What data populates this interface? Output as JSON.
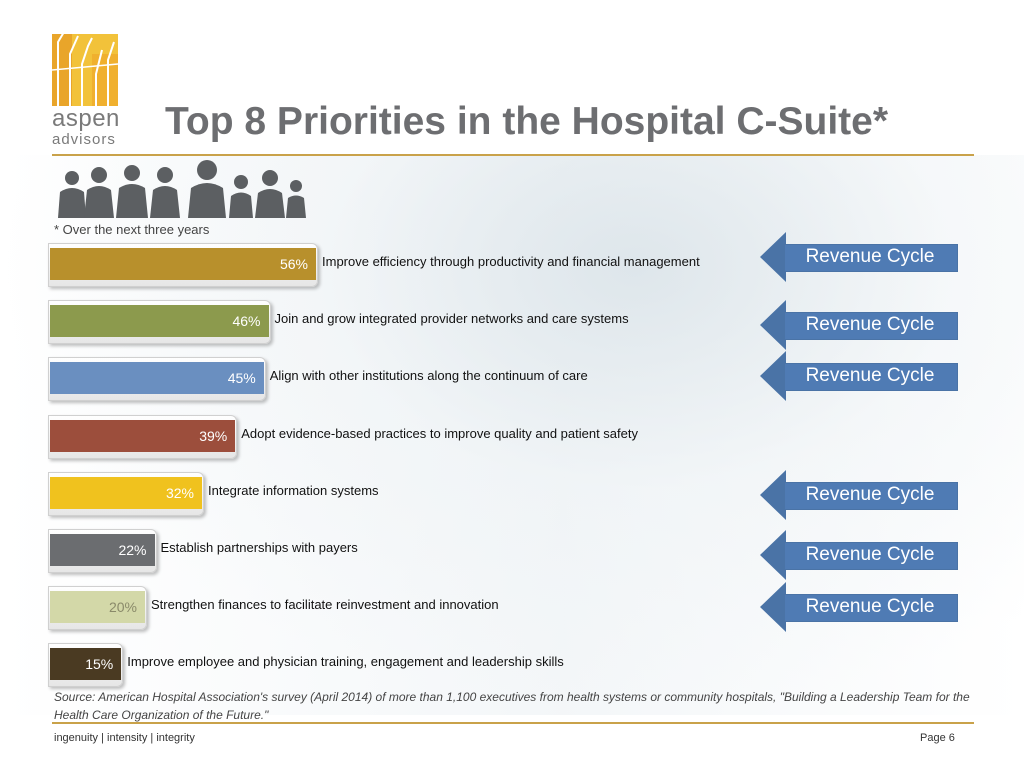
{
  "header": {
    "logo_line1": "aspen",
    "logo_line2": "advisors",
    "title": "Top 8 Priorities in the Hospital C-Suite*"
  },
  "footnote": "* Over the next three years",
  "colors": {
    "accent_gold": "#c9a24a",
    "arrow_blue": "#4f7bb4",
    "bar_colors": [
      "#b8902c",
      "#8c9a4d",
      "#6a8fc0",
      "#9c4e3c",
      "#f0c21e",
      "#6b6d70",
      "#d3d8a8",
      "#4a3a22"
    ]
  },
  "chart_data": {
    "type": "bar",
    "orientation": "horizontal",
    "categories": [
      "Improve efficiency through productivity and financial management",
      "Join and grow integrated provider networks and care systems",
      "Align with other institutions along the continuum of care",
      "Adopt evidence-based practices to improve quality and patient safety",
      "Integrate information systems",
      "Establish partnerships with payers",
      "Strengthen finances to facilitate reinvestment and innovation",
      "Improve employee and physician training, engagement and leadership skills"
    ],
    "values": [
      56,
      46,
      45,
      39,
      32,
      22,
      20,
      15
    ],
    "value_labels": [
      "56%",
      "46%",
      "45%",
      "39%",
      "32%",
      "22%",
      "20%",
      "15%"
    ],
    "xlim": [
      0,
      100
    ],
    "grid": false,
    "legend": "none",
    "title": "Top 8 Priorities in the Hospital C-Suite*"
  },
  "callouts": {
    "label": "Revenue Cycle",
    "rows": [
      0,
      1,
      2,
      4,
      5,
      6
    ]
  },
  "source": "Source: American Hospital Association's survey (April 2014) of more than 1,100 executives from health systems or community hospitals, \"Building a Leadership Team for the Health Care Organization of the Future.\"",
  "footer": {
    "tagline": "ingenuity  |  intensity  |  integrity",
    "page": "Page 6"
  }
}
